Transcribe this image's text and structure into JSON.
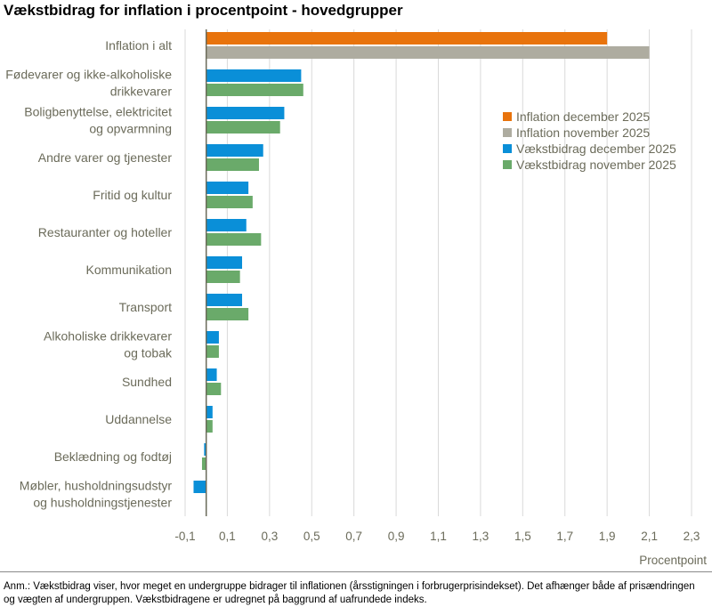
{
  "title": "Vækstbidrag for inflation i procentpoint - hovedgrupper",
  "note": "Anm.: Vækstbidrag viser, hvor meget en undergruppe bidrager til inflationen (årsstigningen i forbrugerprisindekset). Det afhænger både af prisændringen og vægten af undergruppen. Vækstbidragene er udregnet på baggrund af uafrundede indeks.",
  "chart_data": {
    "type": "bar",
    "orientation": "horizontal",
    "xlabel": "Procentpoint",
    "xlim": [
      -0.1,
      2.3
    ],
    "xticks": [
      "-0,1",
      "0,1",
      "0,3",
      "0,5",
      "0,7",
      "0,9",
      "1,1",
      "1,3",
      "1,5",
      "1,7",
      "1,9",
      "2,1",
      "2,3"
    ],
    "grid": true,
    "legend_position": "right",
    "categories": [
      [
        "Inflation i alt"
      ],
      [
        "Fødevarer og ikke-alkoholiske",
        "drikkevarer"
      ],
      [
        "Boligbenyttelse, elektricitet",
        "og opvarmning"
      ],
      [
        "Andre varer og tjenester"
      ],
      [
        "Fritid og kultur"
      ],
      [
        "Restauranter og hoteller"
      ],
      [
        "Kommunikation"
      ],
      [
        "Transport"
      ],
      [
        "Alkoholiske drikkevarer",
        "og tobak"
      ],
      [
        "Sundhed"
      ],
      [
        "Uddannelse"
      ],
      [
        "Beklædning og fodtøj"
      ],
      [
        "Møbler, husholdningsudstyr",
        "og husholdningstjenester"
      ]
    ],
    "series": [
      {
        "name": "Inflation december 2025",
        "color": "#e8730c",
        "values": [
          1.9,
          null,
          null,
          null,
          null,
          null,
          null,
          null,
          null,
          null,
          null,
          null,
          null
        ]
      },
      {
        "name": "Inflation november 2025",
        "color": "#aeaca0",
        "values": [
          2.1,
          null,
          null,
          null,
          null,
          null,
          null,
          null,
          null,
          null,
          null,
          null,
          null
        ]
      },
      {
        "name": "Vækstbidrag december 2025",
        "color": "#0a8fd8",
        "values": [
          null,
          0.45,
          0.37,
          0.27,
          0.2,
          0.19,
          0.17,
          0.17,
          0.06,
          0.05,
          0.03,
          -0.01,
          -0.06
        ]
      },
      {
        "name": "Vækstbidrag november 2025",
        "color": "#6aaa6a",
        "values": [
          null,
          0.46,
          0.35,
          0.25,
          0.22,
          0.26,
          0.16,
          0.2,
          0.06,
          0.07,
          0.03,
          -0.02,
          0.0
        ]
      }
    ]
  }
}
